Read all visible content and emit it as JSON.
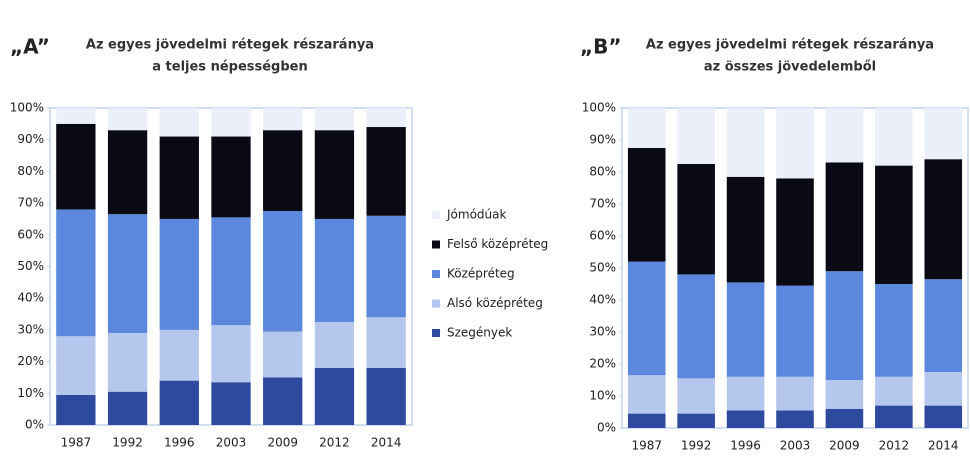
{
  "chart_data": [
    {
      "type": "stacked_bar",
      "label": "„A”",
      "title": [
        "Az egyes jövedelmi rétegek részaránya",
        "a teljes népességben"
      ],
      "categories": [
        "1987",
        "1992",
        "1996",
        "2003",
        "2009",
        "2012",
        "2014"
      ],
      "series": [
        {
          "name": "Szegények",
          "color": "#2e4a9e",
          "values": [
            9.5,
            10.5,
            14,
            13.5,
            15,
            18,
            18
          ]
        },
        {
          "name": "Alsó középréteg",
          "color": "#b5c7ec",
          "values": [
            18.5,
            18.5,
            16,
            18,
            14.5,
            14.5,
            16
          ]
        },
        {
          "name": "Középréteg",
          "color": "#5b87dc",
          "values": [
            40,
            37.5,
            35,
            34,
            38,
            32.5,
            32
          ]
        },
        {
          "name": "Felső középréteg",
          "color": "#0a0a14",
          "values": [
            27,
            26.5,
            26,
            25.5,
            25.5,
            28,
            28
          ]
        },
        {
          "name": "Jómódúak",
          "color": "#eaeffa",
          "values": [
            5,
            7,
            9,
            9,
            7,
            7,
            6
          ]
        }
      ],
      "ylim": [
        0,
        100
      ],
      "yticks": [
        {
          "value": 0,
          "label": "0%"
        },
        {
          "value": 10,
          "label": "10%"
        },
        {
          "value": 20,
          "label": "20%"
        },
        {
          "value": 30,
          "label": "30%"
        },
        {
          "value": 40,
          "label": "40%"
        },
        {
          "value": 50,
          "label": "50%"
        },
        {
          "value": 60,
          "label": "60%"
        },
        {
          "value": 70,
          "label": "70%"
        },
        {
          "value": 80,
          "label": "80%"
        },
        {
          "value": 90,
          "label": "90%"
        },
        {
          "value": 100,
          "label": "100%"
        }
      ],
      "legend": true
    },
    {
      "type": "stacked_bar",
      "label": "„B”",
      "title": [
        "Az egyes jövedelmi rétegek részaránya",
        "az összes jövedelemből"
      ],
      "categories": [
        "1987",
        "1992",
        "1996",
        "2003",
        "2009",
        "2012",
        "2014"
      ],
      "series": [
        {
          "name": "Szegények",
          "color": "#2e4a9e",
          "values": [
            4.5,
            4.5,
            5.5,
            5.5,
            6,
            7,
            7
          ]
        },
        {
          "name": "Alsó középréteg",
          "color": "#b5c7ec",
          "values": [
            12,
            11,
            10.5,
            10.5,
            9,
            9,
            10.5
          ]
        },
        {
          "name": "Középréteg",
          "color": "#5b87dc",
          "values": [
            35.5,
            32.5,
            29.5,
            28.5,
            34,
            29,
            29
          ]
        },
        {
          "name": "Felső középréteg",
          "color": "#0a0a14",
          "values": [
            35.5,
            34.5,
            33,
            33.5,
            34,
            37,
            37.5
          ]
        },
        {
          "name": "Jómódúak",
          "color": "#eaeffa",
          "values": [
            12.5,
            17.5,
            21.5,
            22,
            17,
            18,
            16
          ]
        }
      ],
      "ylim": [
        0,
        100
      ],
      "yticks": [
        {
          "value": 0,
          "label": "0%"
        },
        {
          "value": 10,
          "label": "10%"
        },
        {
          "value": 20,
          "label": "20%"
        },
        {
          "value": 30,
          "label": "30%"
        },
        {
          "value": 40,
          "label": "40%"
        },
        {
          "value": 50,
          "label": "50%"
        },
        {
          "value": 60,
          "label": "60%"
        },
        {
          "value": 70,
          "label": "70%"
        },
        {
          "value": 80,
          "label": "80%"
        },
        {
          "value": 90,
          "label": "90%"
        },
        {
          "value": 100,
          "label": "100%"
        }
      ],
      "legend": false
    }
  ]
}
